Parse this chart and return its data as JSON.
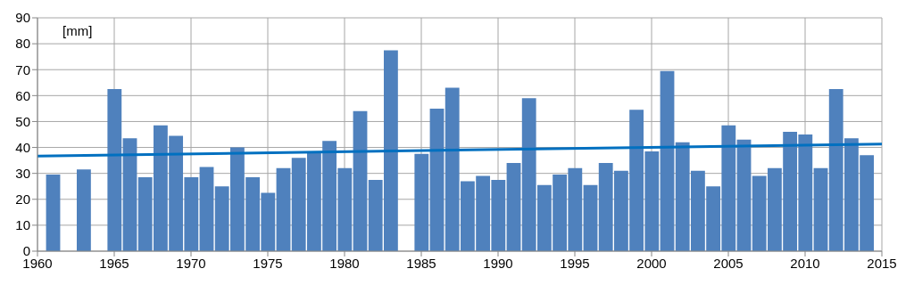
{
  "chart_data": {
    "type": "bar",
    "ylabel": "[mm]",
    "x": [
      1961,
      1962,
      1963,
      1964,
      1965,
      1966,
      1967,
      1968,
      1969,
      1970,
      1971,
      1972,
      1973,
      1974,
      1975,
      1976,
      1977,
      1978,
      1979,
      1980,
      1981,
      1982,
      1983,
      1984,
      1985,
      1986,
      1987,
      1988,
      1989,
      1990,
      1991,
      1992,
      1993,
      1994,
      1995,
      1996,
      1997,
      1998,
      1999,
      2000,
      2001,
      2002,
      2003,
      2004,
      2005,
      2006,
      2007,
      2008,
      2009,
      2010,
      2011,
      2012,
      2013,
      2014
    ],
    "series": [
      {
        "color": "#4f81bd",
        "values": [
          29.5,
          null,
          31.5,
          null,
          62.5,
          43.5,
          28.5,
          48.5,
          44.5,
          28.5,
          32.5,
          25,
          40,
          28.5,
          22.5,
          32,
          36,
          38,
          42.5,
          32,
          54,
          27.5,
          77.5,
          null,
          37.5,
          55,
          63,
          27,
          29,
          27.5,
          34,
          59,
          25.5,
          29.5,
          32,
          25.5,
          34,
          31,
          54.5,
          38.5,
          69.5,
          42,
          31,
          25,
          48.5,
          43,
          29,
          32,
          46,
          45,
          32,
          62.5,
          43.5,
          37
        ]
      },
      {
        "type": "line",
        "color": "#0070c0",
        "x": [
          1960,
          2015
        ],
        "values": [
          36.7,
          41.3
        ]
      }
    ],
    "xlim": [
      1960,
      2015
    ],
    "xticks": [
      1960,
      1965,
      1970,
      1975,
      1980,
      1985,
      1990,
      1995,
      2000,
      2005,
      2010,
      2015
    ],
    "ylim": [
      0,
      90
    ],
    "yticks": [
      0,
      10,
      20,
      30,
      40,
      50,
      60,
      70,
      80,
      90
    ],
    "grid": true
  }
}
